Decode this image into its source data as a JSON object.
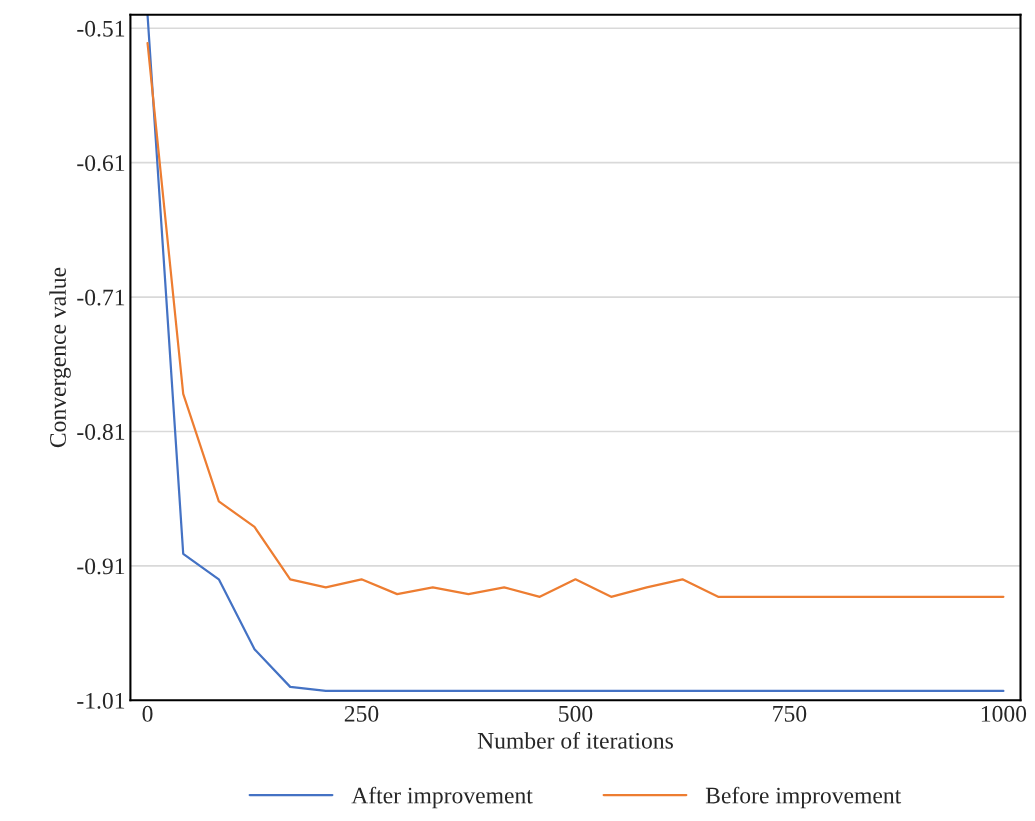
{
  "chart_data": {
    "type": "line",
    "xlabel": "Number of iterations",
    "ylabel": "Convergence value",
    "x": [
      0,
      41.7,
      83.3,
      125,
      166.7,
      208.3,
      250,
      291.7,
      333.3,
      375,
      416.7,
      458.3,
      500,
      541.7,
      583.3,
      625,
      666.7,
      1000
    ],
    "series": [
      {
        "name": "After improvement",
        "color": "#4472c4",
        "values": [
          -0.5,
          -0.901,
          -0.92,
          -0.972,
          -1.0,
          -1.003,
          -1.003,
          -1.003,
          -1.003,
          -1.003,
          -1.003,
          -1.003,
          -1.003,
          -1.003,
          -1.003,
          -1.003,
          -1.003,
          -1.003
        ]
      },
      {
        "name": "Before improvement",
        "color": "#ed7d31",
        "values": [
          -0.521,
          -0.782,
          -0.862,
          -0.881,
          -0.92,
          -0.926,
          -0.92,
          -0.931,
          -0.926,
          -0.931,
          -0.926,
          -0.933,
          -0.92,
          -0.933,
          -0.926,
          -0.92,
          -0.933,
          -0.933
        ]
      }
    ],
    "xlim": [
      -20,
      1020
    ],
    "xticks": [
      0,
      250,
      500,
      750,
      1000
    ],
    "ylim": [
      -1.01,
      -0.5
    ],
    "yticks": [
      -0.51,
      -0.61,
      -0.71,
      -0.81,
      -0.91,
      -1.01
    ],
    "grid": "y",
    "legend": "bottom",
    "marker": "none",
    "line_style": "solid"
  }
}
